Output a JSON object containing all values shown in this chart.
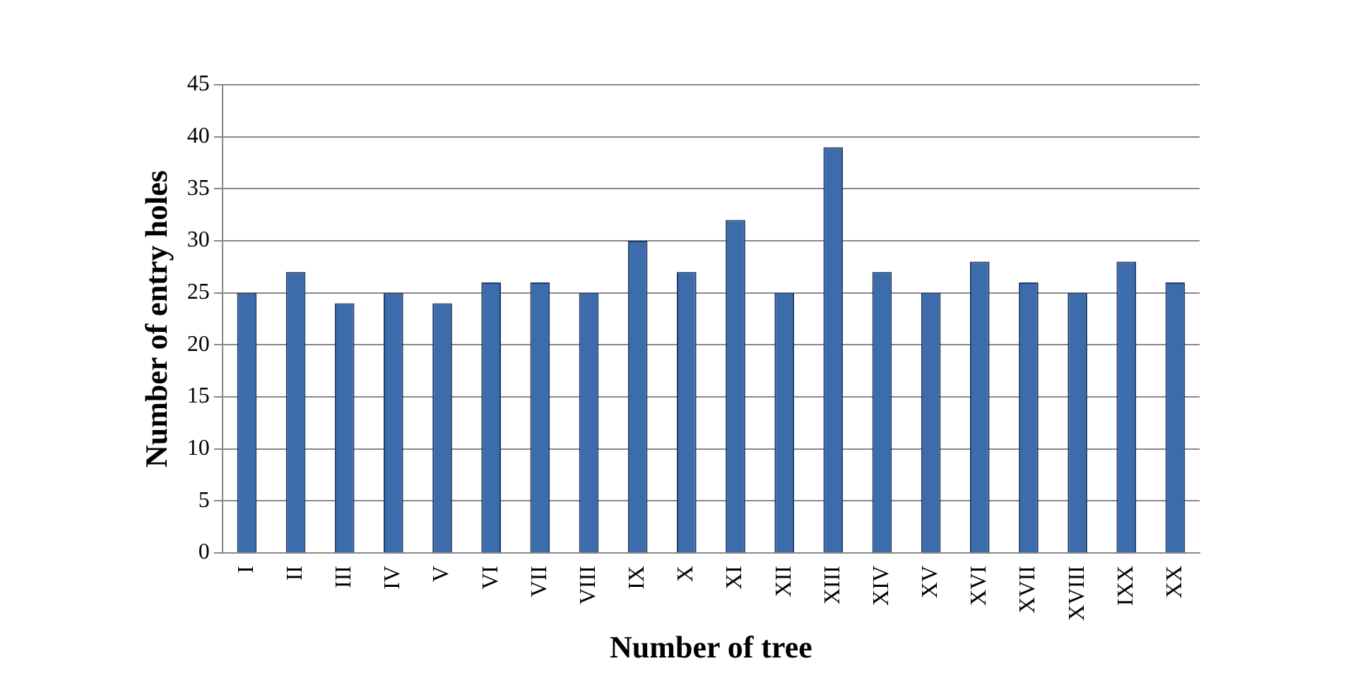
{
  "chart_data": {
    "type": "bar",
    "xlabel": "Number of tree",
    "ylabel": "Number of entry holes",
    "categories": [
      "I",
      "II",
      "III",
      "IV",
      "V",
      "VI",
      "VII",
      "VIII",
      "IX",
      "X",
      "XI",
      "XII",
      "XIII",
      "XIV",
      "XV",
      "XVI",
      "XVII",
      "XVIII",
      "IXX",
      "XX"
    ],
    "values": [
      25,
      27,
      24,
      25,
      24,
      26,
      26,
      25,
      30,
      27,
      32,
      25,
      39,
      27,
      25,
      28,
      26,
      25,
      28,
      26
    ],
    "color": "#3c6cac",
    "ylim": [
      0,
      45
    ],
    "yticks": [
      0,
      5,
      10,
      15,
      20,
      25,
      30,
      35,
      40,
      45
    ],
    "grid": "y",
    "legend": false
  }
}
